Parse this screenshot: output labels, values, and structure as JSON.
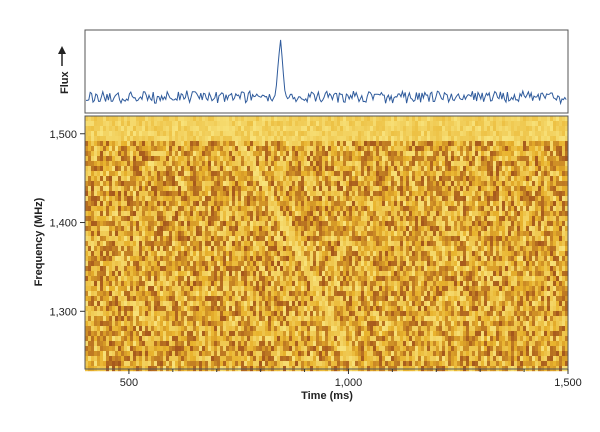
{
  "chart_data": [
    {
      "type": "line",
      "panel": "top",
      "ylabel": "Flux",
      "ylabel_arrow": "up-arrow-icon",
      "series": [
        {
          "color": "#2f5b9c",
          "pulse": {
            "x_ms": 845,
            "relative_height": 1.0
          }
        }
      ],
      "xlim": [
        400,
        1500
      ],
      "grid": false
    },
    {
      "type": "heatmap",
      "panel": "bottom",
      "xlabel": "Time (ms)",
      "ylabel": "Frequency (MHz)",
      "xlim": [
        400,
        1500
      ],
      "ylim": [
        1235,
        1520
      ],
      "x_ticks": [
        {
          "value": 500,
          "label": "500"
        },
        {
          "value": 1000,
          "label": "1,000"
        },
        {
          "value": 1500,
          "label": "1,500"
        }
      ],
      "y_ticks": [
        {
          "value": 1300,
          "label": "1,300"
        },
        {
          "value": 1400,
          "label": "1,400"
        },
        {
          "value": 1500,
          "label": "1,500"
        }
      ],
      "minor_x_ticks": [
        600,
        700,
        800,
        900,
        1100,
        1200,
        1300,
        1400
      ],
      "dispersed_sweep": {
        "start": {
          "time_ms": 700,
          "freq_mhz": 1520
        },
        "end": {
          "time_ms": 1010,
          "freq_mhz": 1235
        }
      },
      "colors": {
        "light": "#f8e27a",
        "mid": "#e8b22c",
        "dark": "#a4561c"
      },
      "grid": false
    }
  ]
}
